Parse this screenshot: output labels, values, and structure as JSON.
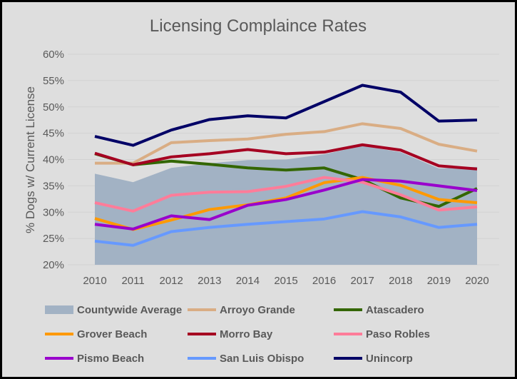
{
  "chart_data": {
    "type": "line",
    "title": "Licensing Complaince Rates",
    "xlabel": "",
    "ylabel": "% Dogs w/ Current License",
    "ylim": [
      20,
      60
    ],
    "yticks": [
      "20%",
      "25%",
      "30%",
      "35%",
      "40%",
      "45%",
      "50%",
      "55%",
      "60%"
    ],
    "yticks_values": [
      20,
      25,
      30,
      35,
      40,
      45,
      50,
      55,
      60
    ],
    "x": [
      "2010",
      "2011",
      "2012",
      "2013",
      "2014",
      "2015",
      "2016",
      "2017",
      "2018",
      "2019",
      "2020"
    ],
    "grid": true,
    "legend_placement": "bottom",
    "series": [
      {
        "name": "Countywide Average",
        "kind": "area",
        "color": "#a2b2c4",
        "values": [
          37.3,
          35.7,
          38.4,
          39.3,
          39.9,
          40.0,
          41.0,
          42.6,
          41.4,
          38.3,
          38.6
        ]
      },
      {
        "name": "Arroyo Grande",
        "color": "#d9ad84",
        "values": [
          39.3,
          39.3,
          43.2,
          43.6,
          43.9,
          44.8,
          45.3,
          46.8,
          45.9,
          42.9,
          41.6
        ]
      },
      {
        "name": "Atascadero",
        "color": "#336600",
        "values": [
          41.1,
          39.0,
          39.7,
          39.1,
          38.4,
          38.0,
          38.4,
          36.2,
          32.7,
          31.1,
          34.5
        ]
      },
      {
        "name": "Grover Beach",
        "color": "#ff9900",
        "values": [
          28.8,
          26.7,
          28.5,
          30.5,
          31.4,
          32.7,
          35.6,
          36.6,
          35.1,
          32.4,
          31.8
        ]
      },
      {
        "name": "Morro Bay",
        "color": "#a50021",
        "values": [
          41.2,
          39.0,
          40.5,
          41.1,
          41.9,
          41.1,
          41.4,
          42.8,
          41.8,
          38.8,
          38.2
        ]
      },
      {
        "name": "Paso Robles",
        "color": "#ff7c99",
        "values": [
          31.8,
          30.2,
          33.2,
          33.8,
          33.9,
          34.9,
          36.6,
          35.7,
          33.3,
          30.4,
          31.0
        ]
      },
      {
        "name": "Pismo Beach",
        "color": "#9900cc",
        "values": [
          27.7,
          26.8,
          29.3,
          28.6,
          31.3,
          32.4,
          34.2,
          36.2,
          35.9,
          35.0,
          34.1
        ]
      },
      {
        "name": "San Luis Obispo",
        "color": "#6699ff",
        "values": [
          24.5,
          23.7,
          26.3,
          27.1,
          27.7,
          28.2,
          28.7,
          30.1,
          29.1,
          27.1,
          27.7
        ]
      },
      {
        "name": "Unincorp",
        "color": "#000066",
        "values": [
          44.4,
          42.7,
          45.6,
          47.6,
          48.3,
          47.9,
          51.0,
          54.1,
          52.8,
          47.3,
          47.5
        ]
      }
    ]
  }
}
